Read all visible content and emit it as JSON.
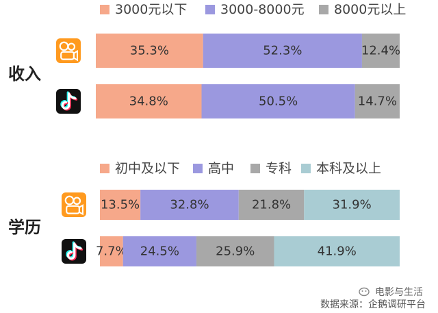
{
  "colors": {
    "salmon": "#f6a88a",
    "purple": "#9b98df",
    "gray": "#a8a8a8",
    "lightblue": "#a9ccd3"
  },
  "chart_data": [
    {
      "type": "bar",
      "orientation": "horizontal-stacked-percent",
      "group_label": "收入",
      "categories": [
        "快手",
        "抖音"
      ],
      "icons": [
        "kuaishou-logo-icon",
        "douyin-logo-icon"
      ],
      "series": [
        {
          "name": "3000元以下",
          "color": "#f6a88a",
          "values": [
            35.3,
            34.8
          ],
          "labels": [
            "35.3%",
            "34.8%"
          ]
        },
        {
          "name": "3000-8000元",
          "color": "#9b98df",
          "values": [
            52.3,
            50.5
          ],
          "labels": [
            "52.3%",
            "50.5%"
          ]
        },
        {
          "name": "8000元以上",
          "color": "#a8a8a8",
          "values": [
            12.4,
            14.7
          ],
          "labels": [
            "12.4%",
            "14.7%"
          ]
        }
      ],
      "legend_position": "top"
    },
    {
      "type": "bar",
      "orientation": "horizontal-stacked-percent",
      "group_label": "学历",
      "categories": [
        "快手",
        "抖音"
      ],
      "icons": [
        "kuaishou-logo-icon",
        "douyin-logo-icon"
      ],
      "series": [
        {
          "name": "初中及以下",
          "color": "#f6a88a",
          "values": [
            13.5,
            7.7
          ],
          "labels": [
            "13.5%",
            "7.7%"
          ]
        },
        {
          "name": "高中",
          "color": "#9b98df",
          "values": [
            32.8,
            24.5
          ],
          "labels": [
            "32.8%",
            "24.5%"
          ]
        },
        {
          "name": "专科",
          "color": "#a8a8a8",
          "values": [
            21.8,
            25.9
          ],
          "labels": [
            "21.8%",
            "25.9%"
          ]
        },
        {
          "name": "本科及以上",
          "color": "#a9ccd3",
          "values": [
            31.9,
            41.9
          ],
          "labels": [
            "31.9%",
            "41.9%"
          ]
        }
      ],
      "legend_position": "top"
    }
  ],
  "watermark": "电影与生活",
  "source_text": "数据来源：企鹅调研平台"
}
